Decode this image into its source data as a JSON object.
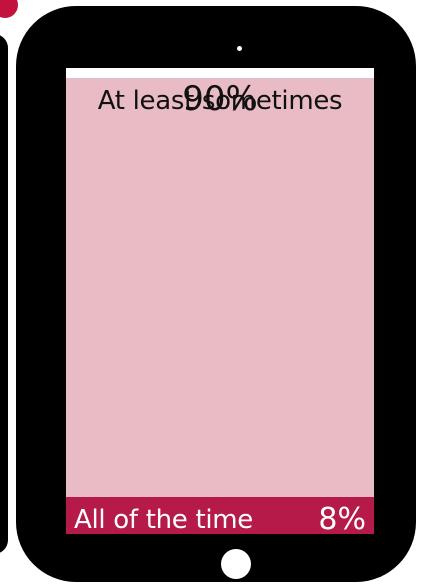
{
  "chart_data": {
    "type": "bar",
    "orientation": "stacked-vertical",
    "categories": [
      "At least sometimes",
      "All of the time"
    ],
    "values": [
      90,
      8
    ],
    "value_labels": [
      "90%",
      "8%"
    ],
    "unit": "%",
    "colors": {
      "at_least_sometimes": "#e9bcc5",
      "all_of_the_time": "#b51a48",
      "frame": "#000000",
      "accent": "#c4123e"
    },
    "device": "tablet"
  }
}
